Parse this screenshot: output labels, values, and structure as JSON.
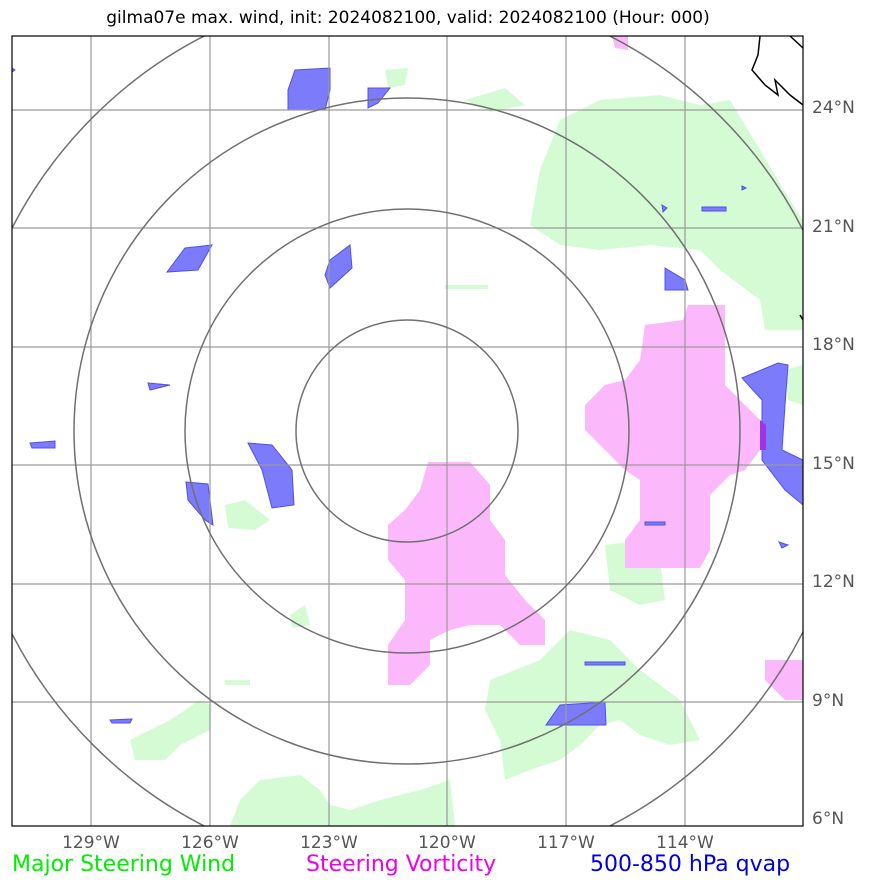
{
  "title": "gilma07e max. wind, init: 2024082100, valid: 2024082100 (Hour: 000)",
  "lat_labels": [
    "24°N",
    "21°N",
    "18°N",
    "15°N",
    "12°N",
    "9°N",
    "6°N"
  ],
  "lon_labels": [
    "129°W",
    "126°W",
    "123°W",
    "120°W",
    "117°W",
    "114°W"
  ],
  "legend": {
    "wind": "Major Steering Wind",
    "vorticity": "Steering Vorticity",
    "qvap": "500-850 hPa qvap"
  },
  "colors": {
    "wind_fill": "#ccffcc",
    "vorticity_fill": "#ff99ff",
    "qvap_fill": "#3333ff",
    "wind_text": "#00ee00",
    "vorticity_text": "#ee00ee",
    "qvap_text": "#0000dd",
    "grid": "#888888",
    "rings": "#707070"
  }
}
